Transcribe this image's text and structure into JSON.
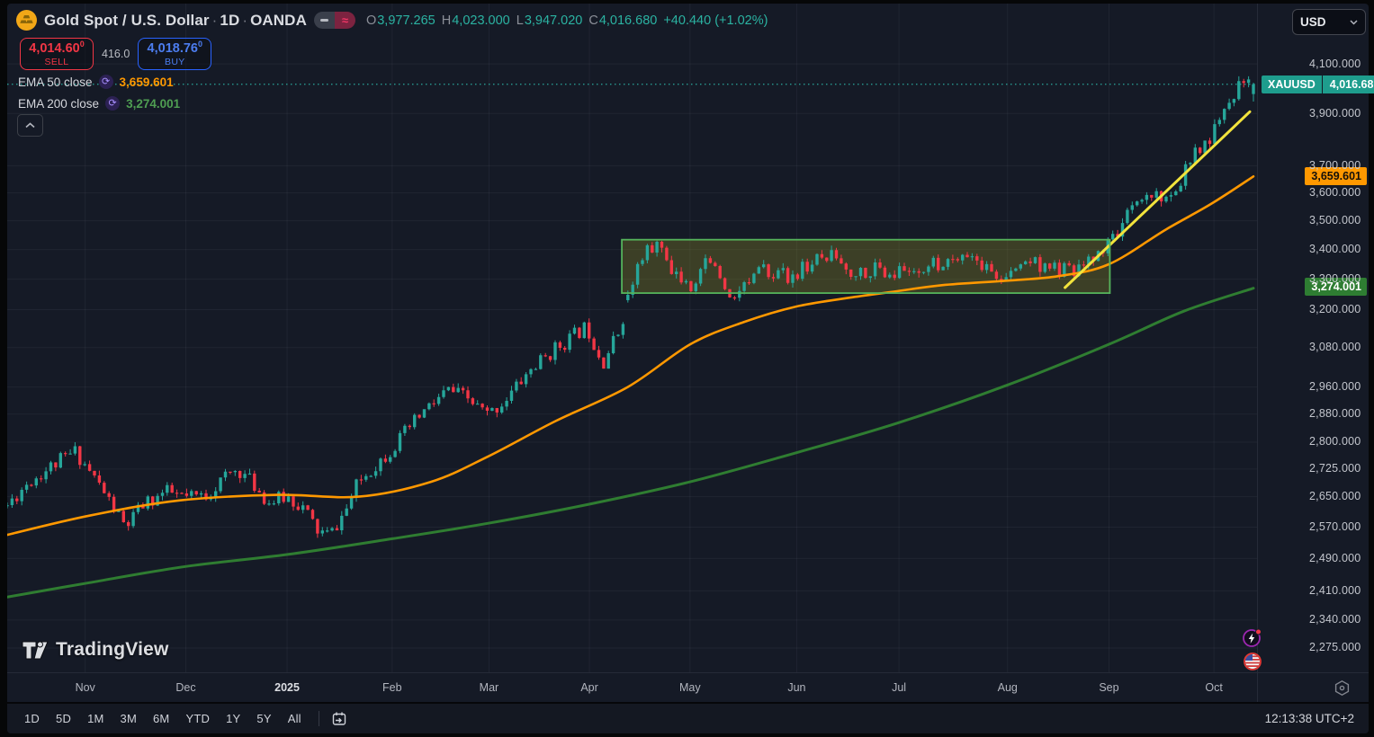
{
  "header": {
    "title": "Gold Spot / U.S. Dollar",
    "sep": "·",
    "interval": "1D",
    "exchange": "OANDA",
    "ohlc": {
      "o_label": "O",
      "o": "3,977.265",
      "h_label": "H",
      "h": "4,023.000",
      "l_label": "L",
      "l": "3,947.020",
      "c_label": "C",
      "c": "4,016.680",
      "change": "+40.440 (+1.02%)"
    }
  },
  "trade_panel": {
    "sell_price": "4,014.60",
    "sell_sup": "0",
    "sell_label": "SELL",
    "spread": "416.0",
    "buy_price": "4,018.76",
    "buy_sup": "0",
    "buy_label": "BUY"
  },
  "legend": {
    "items": [
      {
        "label": "EMA 50 close",
        "value": "3,659.601",
        "color": "#ff9800"
      },
      {
        "label": "EMA 200 close",
        "value": "3,274.001",
        "color": "#4f9e52"
      }
    ]
  },
  "watermark": {
    "brand": "TradingView"
  },
  "price_axis": {
    "currency": "USD",
    "symbol_badge": "XAUUSD",
    "current_badge": "4,016.680",
    "ema50_badge": "3,659.601",
    "ema200_badge": "3,274.001"
  },
  "toolbar": {
    "ranges": [
      "1D",
      "5D",
      "1M",
      "3M",
      "6M",
      "YTD",
      "1Y",
      "5Y",
      "All"
    ],
    "clock": "12:13:38 UTC+2"
  },
  "colors": {
    "up": "#26a69a",
    "down": "#f23645",
    "ema50": "#ff9800",
    "ema200": "#2f7d31",
    "trendline": "#f2e33c",
    "box_fill": "rgba(163,160,38,0.28)",
    "box_stroke": "#55b35b",
    "price_line": "#2aa79b",
    "grid": "rgba(240,243,250,0.05)"
  },
  "chart_data": {
    "type": "candlestick",
    "title": "Gold Spot / U.S. Dollar · 1D · OANDA",
    "symbol": "XAUUSD",
    "last": {
      "open": 3977.265,
      "high": 4023.0,
      "low": 3947.02,
      "close": 4016.68,
      "change": 40.44,
      "change_pct": 1.02
    },
    "scale": "log",
    "ylim": {
      "top": 4357,
      "bottom": 2220
    },
    "price_line": 4016.68,
    "y_ticks": [
      {
        "price": 4100,
        "label": "4,100.000"
      },
      {
        "price": 3900,
        "label": "3,900.000"
      },
      {
        "price": 3700,
        "label": "3,700.000"
      },
      {
        "price": 3600,
        "label": "3,600.000"
      },
      {
        "price": 3500,
        "label": "3,500.000"
      },
      {
        "price": 3400,
        "label": "3,400.000"
      },
      {
        "price": 3300,
        "label": "3,300.000"
      },
      {
        "price": 3200,
        "label": "3,200.000"
      },
      {
        "price": 3080,
        "label": "3,080.000"
      },
      {
        "price": 2960,
        "label": "2,960.000"
      },
      {
        "price": 2880,
        "label": "2,880.000"
      },
      {
        "price": 2800,
        "label": "2,800.000"
      },
      {
        "price": 2725,
        "label": "2,725.000"
      },
      {
        "price": 2650,
        "label": "2,650.000"
      },
      {
        "price": 2570,
        "label": "2,570.000"
      },
      {
        "price": 2490,
        "label": "2,490.000"
      },
      {
        "price": 2410,
        "label": "2,410.000"
      },
      {
        "price": 2340,
        "label": "2,340.000"
      },
      {
        "price": 2275,
        "label": "2,275.000"
      }
    ],
    "x_ticks": [
      {
        "label": "Nov",
        "f": 0.0626,
        "year": false
      },
      {
        "label": "Dec",
        "f": 0.1433,
        "year": false
      },
      {
        "label": "2025",
        "f": 0.2246,
        "year": true
      },
      {
        "label": "Feb",
        "f": 0.3089,
        "year": false
      },
      {
        "label": "Mar",
        "f": 0.3866,
        "year": false
      },
      {
        "label": "Apr",
        "f": 0.4672,
        "year": false
      },
      {
        "label": "May",
        "f": 0.5479,
        "year": false
      },
      {
        "label": "Jun",
        "f": 0.6335,
        "year": false
      },
      {
        "label": "Jul",
        "f": 0.7156,
        "year": false
      },
      {
        "label": "Aug",
        "f": 0.8027,
        "year": false
      },
      {
        "label": "Sep",
        "f": 0.8841,
        "year": false
      },
      {
        "label": "Oct",
        "f": 0.9683,
        "year": false
      }
    ],
    "candle_count": 258,
    "noise_seed": 11,
    "price_path": [
      [
        0.0,
        2627
      ],
      [
        0.016,
        2687
      ],
      [
        0.037,
        2736
      ],
      [
        0.055,
        2774
      ],
      [
        0.073,
        2687
      ],
      [
        0.095,
        2569
      ],
      [
        0.109,
        2627
      ],
      [
        0.127,
        2663
      ],
      [
        0.145,
        2645
      ],
      [
        0.16,
        2655
      ],
      [
        0.174,
        2700
      ],
      [
        0.185,
        2725
      ],
      [
        0.196,
        2690
      ],
      [
        0.21,
        2635
      ],
      [
        0.225,
        2650
      ],
      [
        0.238,
        2620
      ],
      [
        0.249,
        2560
      ],
      [
        0.259,
        2548
      ],
      [
        0.272,
        2615
      ],
      [
        0.282,
        2690
      ],
      [
        0.298,
        2745
      ],
      [
        0.311,
        2790
      ],
      [
        0.332,
        2880
      ],
      [
        0.354,
        2950
      ],
      [
        0.368,
        2928
      ],
      [
        0.386,
        2876
      ],
      [
        0.401,
        2928
      ],
      [
        0.419,
        3008
      ],
      [
        0.44,
        3077
      ],
      [
        0.465,
        3147
      ],
      [
        0.478,
        3035
      ],
      [
        0.491,
        3133
      ],
      [
        0.505,
        3337
      ],
      [
        0.52,
        3429
      ],
      [
        0.534,
        3337
      ],
      [
        0.548,
        3277
      ],
      [
        0.563,
        3383
      ],
      [
        0.577,
        3248
      ],
      [
        0.591,
        3277
      ],
      [
        0.609,
        3337
      ],
      [
        0.627,
        3307
      ],
      [
        0.645,
        3352
      ],
      [
        0.663,
        3383
      ],
      [
        0.678,
        3322
      ],
      [
        0.696,
        3337
      ],
      [
        0.714,
        3322
      ],
      [
        0.732,
        3337
      ],
      [
        0.75,
        3352
      ],
      [
        0.768,
        3398
      ],
      [
        0.786,
        3337
      ],
      [
        0.8,
        3292
      ],
      [
        0.818,
        3368
      ],
      [
        0.836,
        3337
      ],
      [
        0.854,
        3322
      ],
      [
        0.868,
        3352
      ],
      [
        0.884,
        3429
      ],
      [
        0.901,
        3523
      ],
      [
        0.919,
        3603
      ],
      [
        0.933,
        3571
      ],
      [
        0.947,
        3703
      ],
      [
        0.962,
        3787
      ],
      [
        0.973,
        3856
      ],
      [
        0.983,
        3962
      ],
      [
        0.991,
        4052
      ],
      [
        1.0,
        4016.68
      ]
    ],
    "overlays": {
      "ema50": {
        "name": "EMA 50",
        "last": 3659.601,
        "anchors": [
          [
            0.0,
            2550
          ],
          [
            0.066,
            2600
          ],
          [
            0.138,
            2640
          ],
          [
            0.217,
            2655
          ],
          [
            0.282,
            2650
          ],
          [
            0.34,
            2690
          ],
          [
            0.386,
            2760
          ],
          [
            0.44,
            2860
          ],
          [
            0.498,
            2960
          ],
          [
            0.548,
            3090
          ],
          [
            0.591,
            3160
          ],
          [
            0.633,
            3210
          ],
          [
            0.678,
            3240
          ],
          [
            0.714,
            3260
          ],
          [
            0.75,
            3280
          ],
          [
            0.802,
            3295
          ],
          [
            0.843,
            3310
          ],
          [
            0.884,
            3350
          ],
          [
            0.93,
            3470
          ],
          [
            0.966,
            3560
          ],
          [
            1.0,
            3660
          ]
        ]
      },
      "ema200": {
        "name": "EMA 200",
        "last": 3274.001,
        "anchors": [
          [
            0.0,
            2395
          ],
          [
            0.066,
            2430
          ],
          [
            0.143,
            2470
          ],
          [
            0.225,
            2500
          ],
          [
            0.309,
            2540
          ],
          [
            0.386,
            2580
          ],
          [
            0.467,
            2630
          ],
          [
            0.548,
            2690
          ],
          [
            0.633,
            2770
          ],
          [
            0.715,
            2855
          ],
          [
            0.802,
            2965
          ],
          [
            0.884,
            3090
          ],
          [
            0.944,
            3195
          ],
          [
            1.0,
            3270
          ]
        ]
      },
      "trendline": {
        "from": [
          0.8488,
          3272
        ],
        "to": [
          0.9971,
          3907
        ]
      },
      "range_box": {
        "f1": 0.4932,
        "f2": 0.8848,
        "price_top": 3434,
        "price_bottom": 3254
      }
    }
  }
}
